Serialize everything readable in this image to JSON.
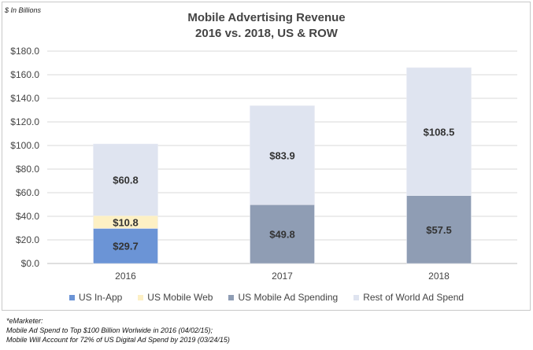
{
  "unit_label": "$ In Billions",
  "chart_data": {
    "type": "bar",
    "stacked": true,
    "title": "Mobile Advertising Revenue",
    "subtitle": "2016 vs. 2018, US & ROW",
    "categories": [
      "2016",
      "2017",
      "2018"
    ],
    "ylim": [
      0,
      180
    ],
    "yticks": [
      "$0.0",
      "$20.0",
      "$40.0",
      "$60.0",
      "$80.0",
      "$100.0",
      "$120.0",
      "$140.0",
      "$160.0",
      "$180.0"
    ],
    "grid": true,
    "legend_position": "bottom",
    "series": [
      {
        "name": "US In-App",
        "color": "#6b94d6",
        "values": [
          29.7,
          null,
          null
        ],
        "labels": [
          "$29.7",
          "",
          ""
        ]
      },
      {
        "name": "US Mobile Web",
        "color": "#fdf0c4",
        "values": [
          10.8,
          null,
          null
        ],
        "labels": [
          "$10.8",
          "",
          ""
        ]
      },
      {
        "name": "US Mobile Ad Spending",
        "color": "#8f9db4",
        "values": [
          null,
          49.8,
          57.5
        ],
        "labels": [
          "",
          "$49.8",
          "$57.5"
        ]
      },
      {
        "name": "Rest of World Ad Spend",
        "color": "#dfe4f0",
        "values": [
          60.8,
          83.9,
          108.5
        ],
        "labels": [
          "$60.8",
          "$83.9",
          "$108.5"
        ]
      }
    ]
  },
  "footnotes": [
    "*eMarketer:",
    "Mobile Ad Spend to Top $100 Billion Worlwide in 2016 (04/02/15);",
    "Mobile Will Account for 72% of US Digital Ad Spend by 2019 (03/24/15)"
  ]
}
